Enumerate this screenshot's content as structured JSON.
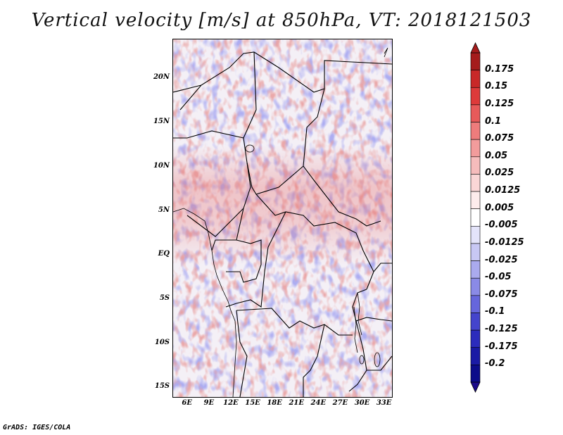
{
  "title": "Vertical velocity [m/s] at 850hPa, VT: 2018121503",
  "footer": "GrADS: IGES/COLA",
  "map": {
    "lat_labels": [
      "20N",
      "15N",
      "10N",
      "5N",
      "EQ",
      "5S",
      "10S",
      "15S"
    ],
    "lat_values": [
      20,
      15,
      10,
      5,
      0,
      -5,
      -10,
      -15
    ],
    "lon_labels": [
      "6E",
      "9E",
      "12E",
      "15E",
      "18E",
      "21E",
      "24E",
      "27E",
      "30E",
      "33E"
    ],
    "lon_values": [
      6,
      9,
      12,
      15,
      18,
      21,
      24,
      27,
      30,
      33
    ],
    "lat_range": [
      -16,
      24.5
    ],
    "lon_range": [
      4,
      34
    ]
  },
  "colorbar": {
    "labels": [
      "0.175",
      "0.15",
      "0.125",
      "0.1",
      "0.075",
      "0.05",
      "0.025",
      "0.0125",
      "0.005",
      "-0.005",
      "-0.0125",
      "-0.025",
      "-0.05",
      "-0.075",
      "-0.1",
      "-0.125",
      "-0.175",
      "-0.2"
    ],
    "colors": [
      "#a51c1c",
      "#c82828",
      "#dd3a3a",
      "#e75a5a",
      "#ee7c7c",
      "#f29c9c",
      "#f6bcbc",
      "#fad6d6",
      "#fdecec",
      "#ffffff",
      "#e4e4fa",
      "#c8c8f4",
      "#aaaaee",
      "#8a8ae6",
      "#6666dc",
      "#4444cc",
      "#2c2cbc",
      "#1a1aa5",
      "#0c0c8a"
    ],
    "top_arrow_color": "#a51c1c",
    "bottom_arrow_color": "#1a0a8a"
  }
}
